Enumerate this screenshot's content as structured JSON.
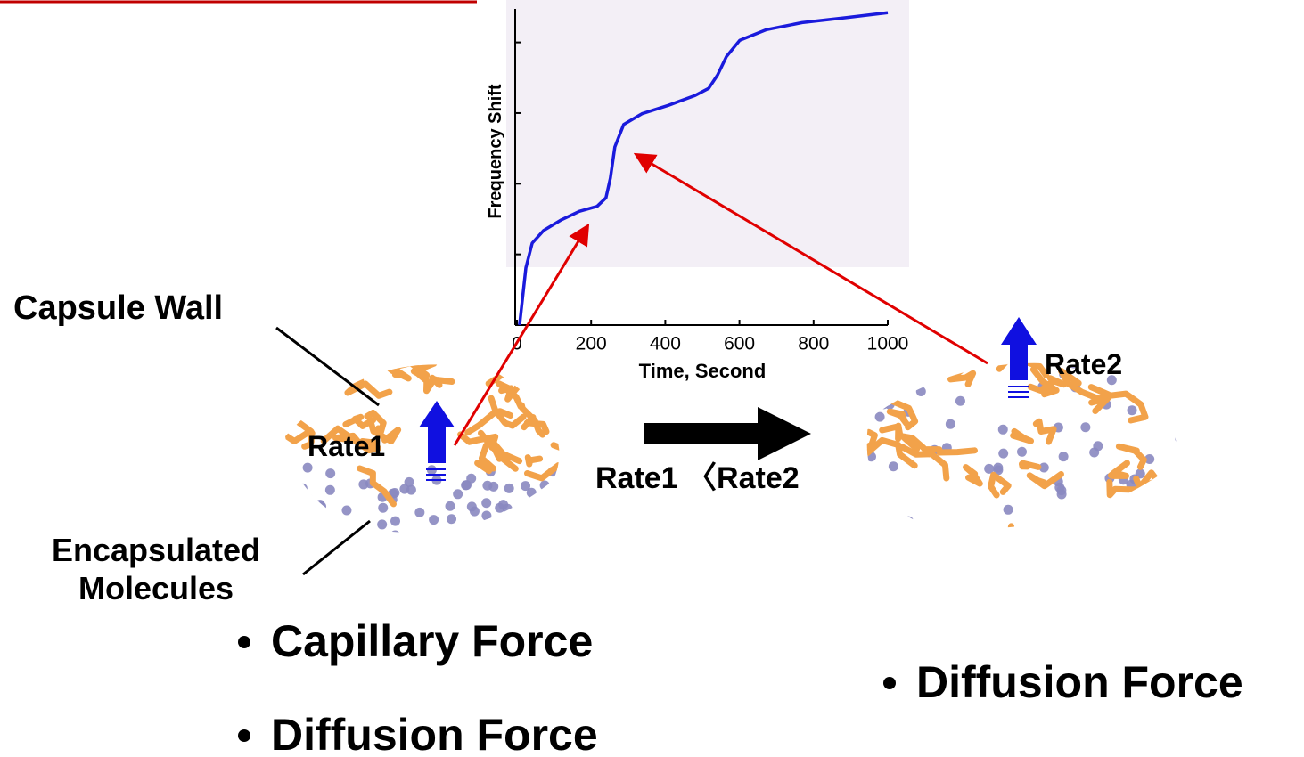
{
  "chart_data": {
    "type": "line",
    "x_label": "Time, Second",
    "y_label": "Frequency Shift",
    "x": [
      7,
      24,
      41,
      72,
      120,
      168,
      216,
      240,
      252,
      264,
      288,
      337,
      409,
      481,
      517,
      541,
      565,
      601,
      673,
      769,
      889,
      1000
    ],
    "series": [
      {
        "color": "#1a1adc",
        "values": [
          0,
          0.81,
          1.16,
          1.34,
          1.49,
          1.61,
          1.68,
          1.8,
          2.08,
          2.52,
          2.84,
          2.99,
          3.11,
          3.25,
          3.35,
          3.54,
          3.8,
          4.03,
          4.18,
          4.28,
          4.35,
          4.42
        ]
      }
    ],
    "xlim": [
      0,
      1000
    ],
    "xticks": [
      0,
      200,
      400,
      600,
      800,
      1000
    ],
    "ylim": [
      0,
      4.6
    ],
    "yticks": [
      1,
      2,
      3,
      4
    ]
  },
  "annotations": {
    "capsule_wall": "Capsule Wall",
    "encapsulated": [
      "Encapsulated",
      "Molecules"
    ],
    "rate1": "Rate1",
    "rate2": "Rate2",
    "comparison": "Rate1 〈Rate2",
    "left_bullets": [
      "Capillary Force",
      "Diffusion Force"
    ],
    "right_bullets": [
      "Diffusion Force"
    ]
  }
}
